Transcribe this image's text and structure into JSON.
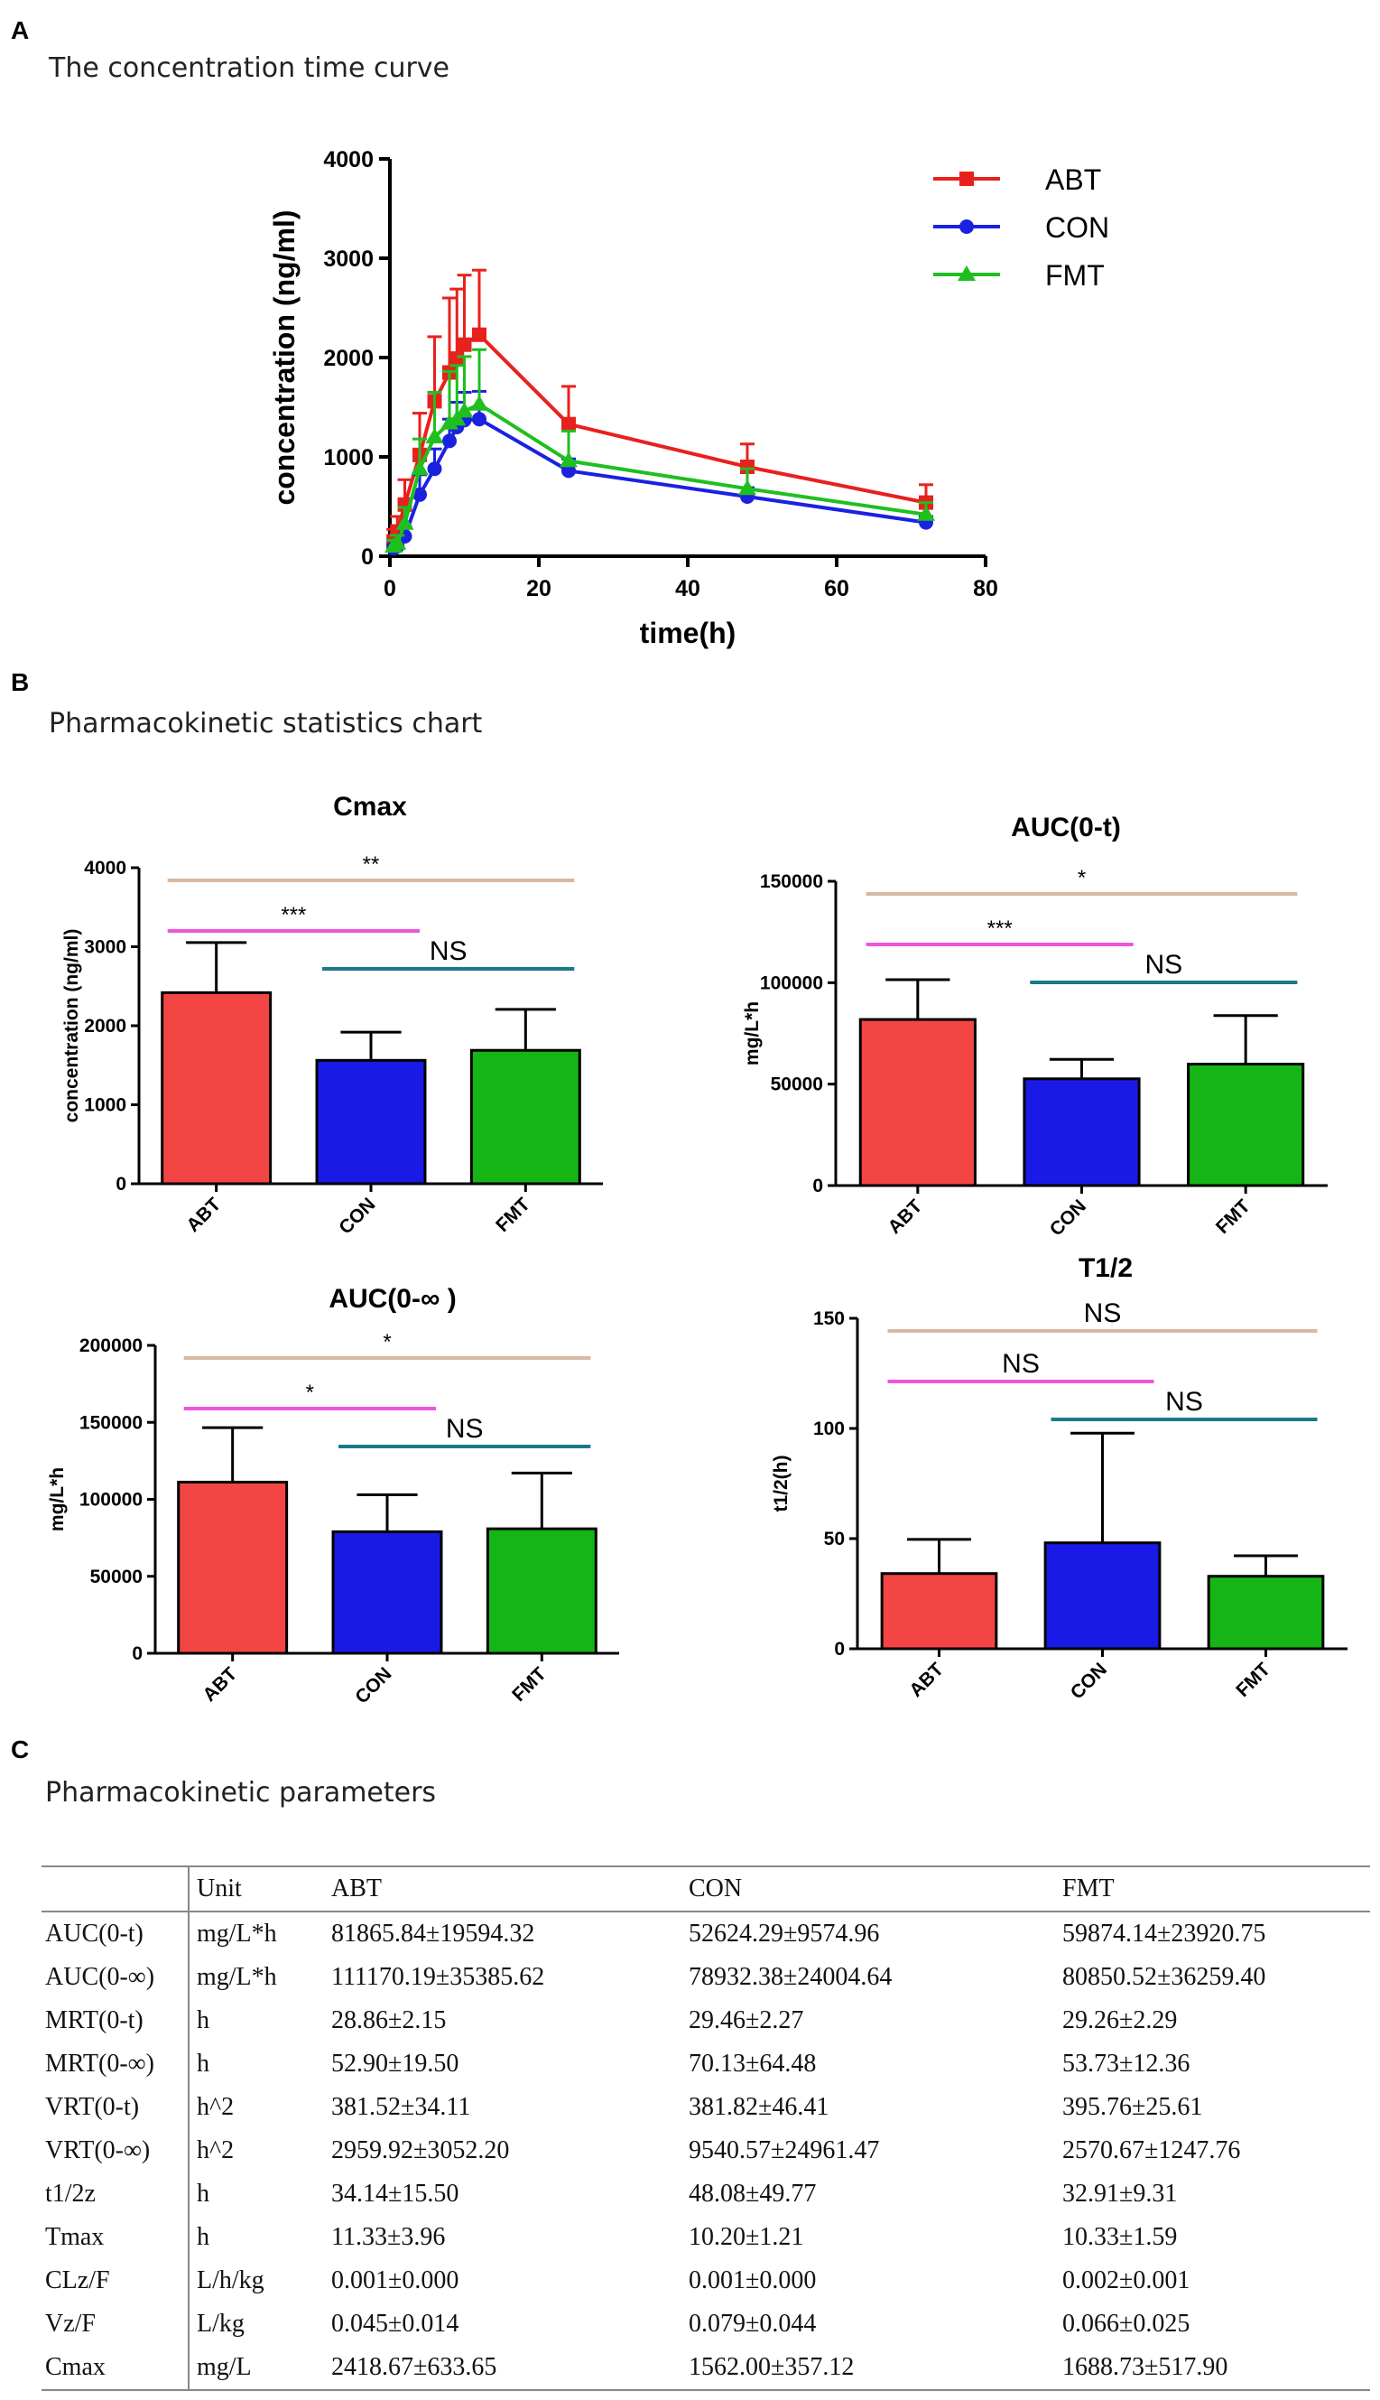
{
  "panels": {
    "a": {
      "letter": "A",
      "caption": "The concentration time curve"
    },
    "b": {
      "letter": "B",
      "caption": "Pharmacokinetic statistics chart"
    },
    "c": {
      "letter": "C",
      "caption": "Pharmacokinetic parameters"
    }
  },
  "colors": {
    "ABT": "#e8211e",
    "CON": "#1a22e0",
    "FMT": "#1fbf1f",
    "bar_ABT": "#f44545",
    "bar_CON": "#1a1ae6",
    "bar_FMT": "#15b515",
    "pink": "#ee55dd",
    "tan": "#d8b9a2",
    "teal": "#1a7a8c"
  },
  "chart_data": [
    {
      "type": "line",
      "title": "The concentration time curve",
      "xlabel": "time(h)",
      "ylabel": "concentration (ng/ml)",
      "xlim": [
        0,
        80
      ],
      "ylim": [
        0,
        4000
      ],
      "xticks": [
        0,
        20,
        40,
        60,
        80
      ],
      "yticks": [
        0,
        1000,
        2000,
        3000,
        4000
      ],
      "legend": "top-right",
      "series": [
        {
          "name": "ABT",
          "marker": "square",
          "x": [
            0.5,
            1,
            2,
            4,
            6,
            8,
            9,
            10,
            12,
            24,
            48,
            72
          ],
          "y": [
            150,
            250,
            520,
            1020,
            1560,
            1850,
            1990,
            2130,
            2230,
            1330,
            900,
            540
          ],
          "err": [
            120,
            150,
            250,
            420,
            650,
            750,
            700,
            700,
            650,
            380,
            230,
            180
          ]
        },
        {
          "name": "CON",
          "marker": "circle",
          "x": [
            0.5,
            1,
            2,
            4,
            6,
            8,
            9,
            10,
            12,
            24,
            48,
            72
          ],
          "y": [
            80,
            100,
            200,
            620,
            880,
            1160,
            1300,
            1370,
            1380,
            860,
            600,
            340
          ],
          "err": [
            40,
            60,
            100,
            200,
            200,
            220,
            250,
            280,
            280,
            120,
            90,
            60
          ]
        },
        {
          "name": "FMT",
          "marker": "triangle",
          "x": [
            0.5,
            1,
            2,
            4,
            6,
            8,
            9,
            10,
            12,
            24,
            48,
            72
          ],
          "y": [
            100,
            130,
            330,
            880,
            1200,
            1340,
            1380,
            1460,
            1530,
            960,
            680,
            420
          ],
          "err": [
            60,
            80,
            160,
            300,
            450,
            520,
            540,
            550,
            550,
            300,
            200,
            120
          ]
        }
      ]
    },
    {
      "type": "bar",
      "title": "Cmax",
      "ylabel": "concentration (ng/ml)",
      "categories": [
        "ABT",
        "CON",
        "FMT"
      ],
      "values": [
        2418.67,
        1562.0,
        1688.73
      ],
      "errors": [
        633.65,
        357.12,
        517.9
      ],
      "ylim": [
        0,
        4000
      ],
      "yticks": [
        0,
        1000,
        2000,
        3000,
        4000
      ],
      "comparisons": [
        {
          "from": 0,
          "to": 1,
          "label": "***",
          "color": "pink",
          "level": 0
        },
        {
          "from": 1,
          "to": 2,
          "label": "NS",
          "color": "teal",
          "level": 1
        },
        {
          "from": 0,
          "to": 2,
          "label": "**",
          "color": "tan",
          "level": 2
        }
      ]
    },
    {
      "type": "bar",
      "title": "AUC(0-t)",
      "ylabel": "mg/L*h",
      "categories": [
        "ABT",
        "CON",
        "FMT"
      ],
      "values": [
        81865.84,
        52624.29,
        59874.14
      ],
      "errors": [
        19594.32,
        9574.96,
        23920.75
      ],
      "ylim": [
        0,
        150000
      ],
      "yticks": [
        0,
        50000,
        100000,
        150000
      ],
      "comparisons": [
        {
          "from": 0,
          "to": 1,
          "label": "***",
          "color": "pink",
          "level": 0
        },
        {
          "from": 1,
          "to": 2,
          "label": "NS",
          "color": "teal",
          "level": 1
        },
        {
          "from": 0,
          "to": 2,
          "label": "*",
          "color": "tan",
          "level": 2
        }
      ]
    },
    {
      "type": "bar",
      "title": "AUC(0-∞ )",
      "ylabel": "mg/L*h",
      "categories": [
        "ABT",
        "CON",
        "FMT"
      ],
      "values": [
        111170.19,
        78932.38,
        80850.52
      ],
      "errors": [
        35385.62,
        24004.64,
        36259.4
      ],
      "ylim": [
        0,
        200000
      ],
      "yticks": [
        0,
        50000,
        100000,
        150000,
        200000
      ],
      "comparisons": [
        {
          "from": 0,
          "to": 1,
          "label": "*",
          "color": "pink",
          "level": 0
        },
        {
          "from": 1,
          "to": 2,
          "label": "NS",
          "color": "teal",
          "level": 1
        },
        {
          "from": 0,
          "to": 2,
          "label": "*",
          "color": "tan",
          "level": 2
        }
      ]
    },
    {
      "type": "bar",
      "title": "T1/2",
      "ylabel": "t1/2(h)",
      "categories": [
        "ABT",
        "CON",
        "FMT"
      ],
      "values": [
        34.14,
        48.08,
        32.91
      ],
      "errors": [
        15.5,
        49.77,
        9.31
      ],
      "ylim": [
        0,
        150
      ],
      "yticks": [
        0,
        50,
        100,
        150
      ],
      "comparisons": [
        {
          "from": 0,
          "to": 1,
          "label": "NS",
          "color": "pink",
          "level": 0
        },
        {
          "from": 1,
          "to": 2,
          "label": "NS",
          "color": "teal",
          "level": 1
        },
        {
          "from": 0,
          "to": 2,
          "label": "NS",
          "color": "tan",
          "level": 2
        }
      ]
    }
  ],
  "table": {
    "headers": [
      "",
      "Unit",
      "ABT",
      "CON",
      "FMT"
    ],
    "rows": [
      [
        "AUC(0-t)",
        "mg/L*h",
        "81865.84±19594.32",
        "52624.29±9574.96",
        "59874.14±23920.75"
      ],
      [
        "AUC(0-∞)",
        "mg/L*h",
        "111170.19±35385.62",
        "78932.38±24004.64",
        "80850.52±36259.40"
      ],
      [
        "MRT(0-t)",
        "h",
        "28.86±2.15",
        "29.46±2.27",
        "29.26±2.29"
      ],
      [
        "MRT(0-∞)",
        "h",
        "52.90±19.50",
        "70.13±64.48",
        "53.73±12.36"
      ],
      [
        "VRT(0-t)",
        "h^2",
        "381.52±34.11",
        "381.82±46.41",
        "395.76±25.61"
      ],
      [
        "VRT(0-∞)",
        "h^2",
        "2959.92±3052.20",
        "9540.57±24961.47",
        "2570.67±1247.76"
      ],
      [
        "t1/2z",
        "h",
        "34.14±15.50",
        "48.08±49.77",
        "32.91±9.31"
      ],
      [
        "Tmax",
        "h",
        "11.33±3.96",
        "10.20±1.21",
        "10.33±1.59"
      ],
      [
        "CLz/F",
        "L/h/kg",
        "0.001±0.000",
        "0.001±0.000",
        "0.002±0.001"
      ],
      [
        "Vz/F",
        "L/kg",
        "0.045±0.014",
        "0.079±0.044",
        "0.066±0.025"
      ],
      [
        "Cmax",
        "mg/L",
        "2418.67±633.65",
        "1562.00±357.12",
        "1688.73±517.90"
      ]
    ]
  }
}
